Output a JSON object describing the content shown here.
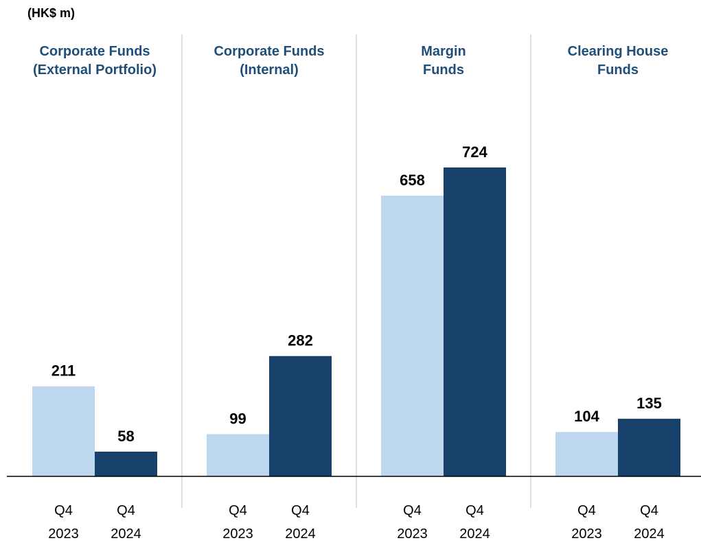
{
  "chart_data": {
    "type": "bar",
    "subtitle": "(HK$ m)",
    "categories": [
      "Corporate Funds\n(External Portfolio)",
      "Corporate Funds\n(Internal)",
      "Margin\nFunds",
      "Clearing House\nFunds"
    ],
    "series": [
      {
        "name": "Q4 2023",
        "color": "#bdd7ee",
        "values": [
          211,
          99,
          658,
          104
        ]
      },
      {
        "name": "Q4 2024",
        "color": "#17406a",
        "values": [
          58,
          282,
          724,
          135
        ]
      }
    ]
  }
}
